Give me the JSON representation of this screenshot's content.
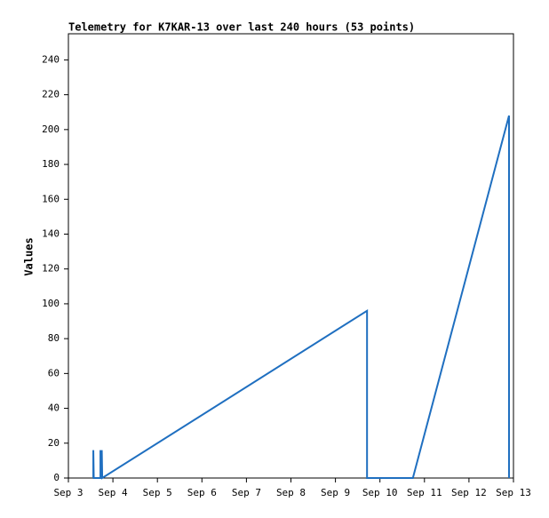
{
  "chart_data": {
    "type": "line",
    "title": "Telemetry for K7KAR-13 over last 240 hours (53 points)",
    "y_label": "Values",
    "x": [
      3.56,
      3.56,
      3.57,
      3.72,
      3.72,
      3.73,
      3.75,
      3.76,
      9.71,
      9.71,
      10.74,
      12.9,
      12.9
    ],
    "series": [
      {
        "color": "#1f6fc0",
        "values": [
          0,
          16,
          0,
          0,
          16,
          0,
          16,
          0,
          96,
          0,
          0,
          208,
          0
        ]
      }
    ],
    "xlim": [
      3,
      13
    ],
    "xticks": [
      {
        "value": 3,
        "label": "Sep 3"
      },
      {
        "value": 4,
        "label": "Sep 4"
      },
      {
        "value": 5,
        "label": "Sep 5"
      },
      {
        "value": 6,
        "label": "Sep 6"
      },
      {
        "value": 7,
        "label": "Sep 7"
      },
      {
        "value": 8,
        "label": "Sep 8"
      },
      {
        "value": 9,
        "label": "Sep 9"
      },
      {
        "value": 10,
        "label": "Sep 10"
      },
      {
        "value": 11,
        "label": "Sep 11"
      },
      {
        "value": 12,
        "label": "Sep 12"
      },
      {
        "value": 13,
        "label": "Sep 13"
      }
    ],
    "ylim": [
      0,
      255
    ],
    "yticks": [
      0,
      20,
      40,
      60,
      80,
      100,
      120,
      140,
      160,
      180,
      200,
      220,
      240
    ],
    "grid": false
  }
}
